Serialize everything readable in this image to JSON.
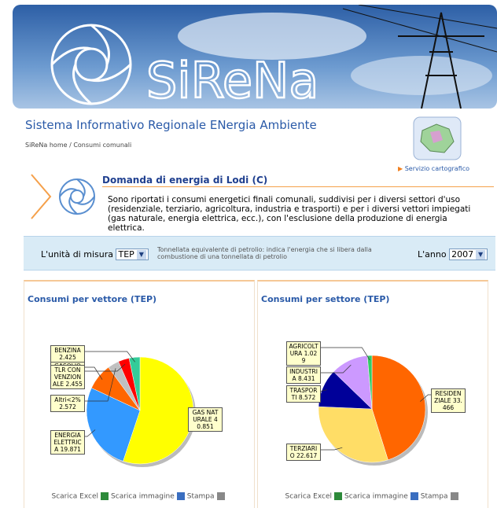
{
  "header": {
    "logo": "SiReNa"
  },
  "title": "Sistema Informativo Regionale ENergia Ambiente",
  "breadcrumb": "SiReNa home / Consumi comunali",
  "map_link": "Servizio cartografico",
  "section": {
    "heading": "Domanda di energia di Lodi (C)",
    "text": "Sono riportati i consumi energetici finali comunali, suddivisi per i diversi settori d'uso (residenziale, terziario, agricoltura, industria e trasporti) e per i diversi vettori impiegati (gas naturale, energia elettrica, ecc.), con l'esclusione della produzione di energia elettrica."
  },
  "controls": {
    "unit_label": "L'unità di misura",
    "unit_value": "TEP",
    "unit_note": "Tonnellata equivalente di petrolio: indica l'energia che si libera dalla combustione di una tonnellata di petrolio",
    "year_label": "L'anno",
    "year_value": "2007"
  },
  "chart_actions": [
    "Scarica Excel",
    "Scarica immagine",
    "Stampa"
  ],
  "charts": [
    {
      "type": "pie",
      "title": "Consumi per vettore (TEP)",
      "categories": [
        "GAS NATURALE",
        "ENERGIA ELETTRICA",
        "GASOLIO",
        "Altri<2%",
        "TLR CONVENZIONALE",
        "BENZINA"
      ],
      "values": [
        40.851,
        19.871,
        5.943,
        2.572,
        2.455,
        2.425
      ],
      "colors": [
        "#ffff00",
        "#3399ff",
        "#ff6600",
        "#c0c0c0",
        "#ff0000",
        "#33cc99"
      ]
    },
    {
      "type": "pie",
      "title": "Consumi per settore (TEP)",
      "categories": [
        "RESIDENZIALE",
        "TERZIARIO",
        "TRASPORTI",
        "INDUSTRIA",
        "AGRICOLTURA"
      ],
      "values": [
        33.466,
        22.617,
        8.572,
        8.431,
        1.029
      ],
      "colors": [
        "#ff6600",
        "#ffdd66",
        "#000099",
        "#cc99ff",
        "#33cc66"
      ]
    }
  ]
}
